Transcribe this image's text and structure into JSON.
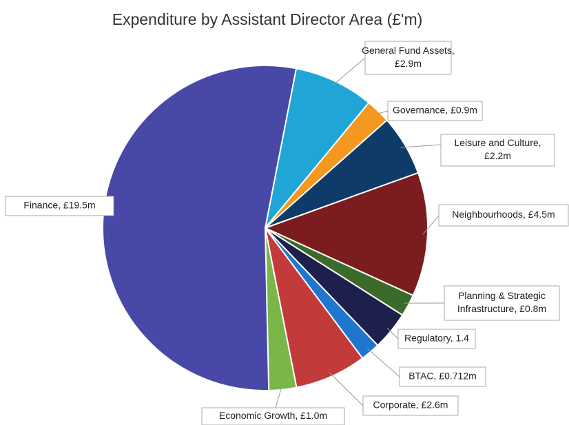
{
  "chart_data": {
    "type": "pie",
    "title": "Expenditure by Assistant Director Area (£'m)",
    "labels": [
      [
        "General Fund Assets,",
        "£2.9m"
      ],
      [
        "Governance, £0.9m"
      ],
      [
        "Leisure and Culture,",
        "£2.2m"
      ],
      [
        "Neighbourhoods, £4.5m"
      ],
      [
        "Planning & Strategic",
        "Infrastructure, £0.8m"
      ],
      [
        "Regulatory, 1.4"
      ],
      [
        "BTAC, £0.712m"
      ],
      [
        "Corporate, £2.6m"
      ],
      [
        "Economic Growth, £1.0m"
      ],
      [
        "Finance, £19.5m"
      ]
    ],
    "values": [
      2.9,
      0.9,
      2.2,
      4.5,
      0.8,
      1.4,
      0.712,
      2.6,
      1.0,
      19.5
    ],
    "colors": [
      "#1fa6d6",
      "#f5981f",
      "#0e3b68",
      "#7b1d1f",
      "#3b6b2b",
      "#1d1f4c",
      "#1f76cf",
      "#c23a3a",
      "#7ab648",
      "#4848a6"
    ]
  }
}
